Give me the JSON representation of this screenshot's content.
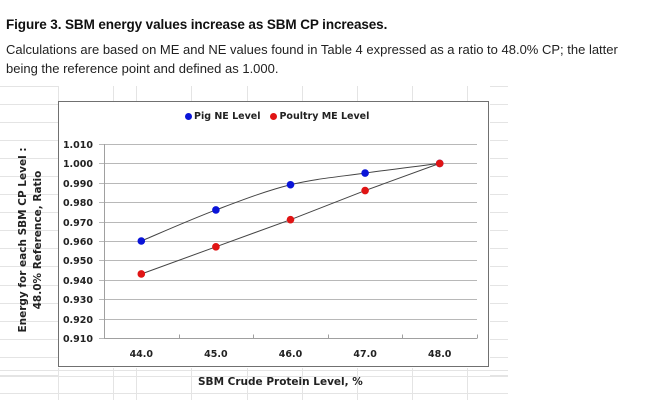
{
  "figure": {
    "title": "Figure 3.  SBM energy values increase as SBM CP increases.",
    "caption": "Calculations are based on ME and NE values found in Table 4 expressed as a ratio to 48.0% CP; the latter being the reference point and defined as 1.000."
  },
  "chart_data": {
    "type": "line",
    "title": "",
    "xlabel": "SBM Crude Protein Level, %",
    "ylabel": "Energy for each SBM CP Level : 48.0% Reference, Ratio",
    "ylabel_lines": [
      "Energy for each SBM CP Level :",
      "48.0% Reference, Ratio"
    ],
    "categories": [
      "44.0",
      "45.0",
      "46.0",
      "47.0",
      "48.0"
    ],
    "x_tick_labels": [
      "44.0",
      "45.0",
      "46.0",
      "47.0",
      "48.0"
    ],
    "y_tick_labels": [
      "1.010",
      "1.000",
      "0.990",
      "0.980",
      "0.970",
      "0.960",
      "0.950",
      "0.940",
      "0.930",
      "0.920",
      "0.910"
    ],
    "ylim": [
      0.91,
      1.01
    ],
    "y_step": 0.01,
    "grid": true,
    "legend_position": "top",
    "series": [
      {
        "name": "Pig NE Level",
        "color": "#0a14d8",
        "smooth": true,
        "values": [
          0.96,
          0.976,
          0.989,
          0.995,
          1.0
        ]
      },
      {
        "name": "Poultry ME Level",
        "color": "#e01414",
        "smooth": false,
        "values": [
          0.943,
          0.957,
          0.971,
          0.986,
          1.0
        ]
      }
    ]
  },
  "colors": {
    "gridline": "#b8b8b8",
    "axis": "#a0a0a0",
    "sheet_gridline": "#e4e4e4",
    "chart_border": "#707070",
    "connector": "#444444"
  }
}
